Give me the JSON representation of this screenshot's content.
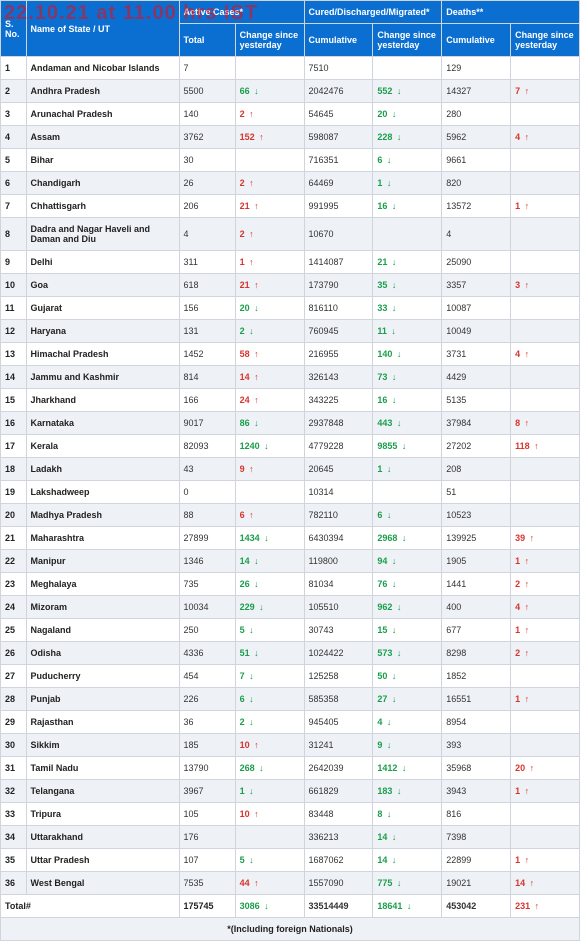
{
  "watermark": "22.10.21 at 11.00 hrs IST",
  "headers": {
    "sno": "S. No.",
    "state": "Name of State / UT",
    "active_group": "Active Cases*",
    "cured_group": "Cured/Discharged/Migrated*",
    "deaths_group": "Deaths**",
    "total": "Total",
    "change": "Change since yesterday",
    "cumulative": "Cumulative"
  },
  "footnote": "*(Including foreign Nationals)",
  "total_label": "Total#",
  "totals": {
    "active_total": "175745",
    "active_change": "3086",
    "active_dir": "down",
    "cured_cum": "33514449",
    "cured_change": "18641",
    "cured_dir": "down",
    "death_cum": "453042",
    "death_change": "231",
    "death_dir": "up"
  },
  "rows": [
    {
      "n": "1",
      "name": "Andaman and Nicobar Islands",
      "at": "7",
      "ac": "",
      "ad": "",
      "cc": "7510",
      "cch": "",
      "cd": "",
      "dc": "129",
      "dch": "",
      "dd": ""
    },
    {
      "n": "2",
      "name": "Andhra Pradesh",
      "at": "5500",
      "ac": "66",
      "ad": "down",
      "cc": "2042476",
      "cch": "552",
      "cd": "down",
      "dc": "14327",
      "dch": "7",
      "dd": "up"
    },
    {
      "n": "3",
      "name": "Arunachal Pradesh",
      "at": "140",
      "ac": "2",
      "ad": "up",
      "cc": "54645",
      "cch": "20",
      "cd": "down",
      "dc": "280",
      "dch": "",
      "dd": ""
    },
    {
      "n": "4",
      "name": "Assam",
      "at": "3762",
      "ac": "152",
      "ad": "up",
      "cc": "598087",
      "cch": "228",
      "cd": "down",
      "dc": "5962",
      "dch": "4",
      "dd": "up"
    },
    {
      "n": "5",
      "name": "Bihar",
      "at": "30",
      "ac": "",
      "ad": "",
      "cc": "716351",
      "cch": "6",
      "cd": "down",
      "dc": "9661",
      "dch": "",
      "dd": ""
    },
    {
      "n": "6",
      "name": "Chandigarh",
      "at": "26",
      "ac": "2",
      "ad": "up",
      "cc": "64469",
      "cch": "1",
      "cd": "down",
      "dc": "820",
      "dch": "",
      "dd": ""
    },
    {
      "n": "7",
      "name": "Chhattisgarh",
      "at": "206",
      "ac": "21",
      "ad": "up",
      "cc": "991995",
      "cch": "16",
      "cd": "down",
      "dc": "13572",
      "dch": "1",
      "dd": "up"
    },
    {
      "n": "8",
      "name": "Dadra and Nagar Haveli and Daman and Diu",
      "at": "4",
      "ac": "2",
      "ad": "up",
      "cc": "10670",
      "cch": "",
      "cd": "",
      "dc": "4",
      "dch": "",
      "dd": ""
    },
    {
      "n": "9",
      "name": "Delhi",
      "at": "311",
      "ac": "1",
      "ad": "up",
      "cc": "1414087",
      "cch": "21",
      "cd": "down",
      "dc": "25090",
      "dch": "",
      "dd": ""
    },
    {
      "n": "10",
      "name": "Goa",
      "at": "618",
      "ac": "21",
      "ad": "up",
      "cc": "173790",
      "cch": "35",
      "cd": "down",
      "dc": "3357",
      "dch": "3",
      "dd": "up"
    },
    {
      "n": "11",
      "name": "Gujarat",
      "at": "156",
      "ac": "20",
      "ad": "down",
      "cc": "816110",
      "cch": "33",
      "cd": "down",
      "dc": "10087",
      "dch": "",
      "dd": ""
    },
    {
      "n": "12",
      "name": "Haryana",
      "at": "131",
      "ac": "2",
      "ad": "down",
      "cc": "760945",
      "cch": "11",
      "cd": "down",
      "dc": "10049",
      "dch": "",
      "dd": ""
    },
    {
      "n": "13",
      "name": "Himachal Pradesh",
      "at": "1452",
      "ac": "58",
      "ad": "up",
      "cc": "216955",
      "cch": "140",
      "cd": "down",
      "dc": "3731",
      "dch": "4",
      "dd": "up"
    },
    {
      "n": "14",
      "name": "Jammu and Kashmir",
      "at": "814",
      "ac": "14",
      "ad": "up",
      "cc": "326143",
      "cch": "73",
      "cd": "down",
      "dc": "4429",
      "dch": "",
      "dd": ""
    },
    {
      "n": "15",
      "name": "Jharkhand",
      "at": "166",
      "ac": "24",
      "ad": "up",
      "cc": "343225",
      "cch": "16",
      "cd": "down",
      "dc": "5135",
      "dch": "",
      "dd": ""
    },
    {
      "n": "16",
      "name": "Karnataka",
      "at": "9017",
      "ac": "86",
      "ad": "down",
      "cc": "2937848",
      "cch": "443",
      "cd": "down",
      "dc": "37984",
      "dch": "8",
      "dd": "up"
    },
    {
      "n": "17",
      "name": "Kerala",
      "at": "82093",
      "ac": "1240",
      "ad": "down",
      "cc": "4779228",
      "cch": "9855",
      "cd": "down",
      "dc": "27202",
      "dch": "118",
      "dd": "up"
    },
    {
      "n": "18",
      "name": "Ladakh",
      "at": "43",
      "ac": "9",
      "ad": "up",
      "cc": "20645",
      "cch": "1",
      "cd": "down",
      "dc": "208",
      "dch": "",
      "dd": ""
    },
    {
      "n": "19",
      "name": "Lakshadweep",
      "at": "0",
      "ac": "",
      "ad": "",
      "cc": "10314",
      "cch": "",
      "cd": "",
      "dc": "51",
      "dch": "",
      "dd": ""
    },
    {
      "n": "20",
      "name": "Madhya Pradesh",
      "at": "88",
      "ac": "6",
      "ad": "up",
      "cc": "782110",
      "cch": "6",
      "cd": "down",
      "dc": "10523",
      "dch": "",
      "dd": ""
    },
    {
      "n": "21",
      "name": "Maharashtra",
      "at": "27899",
      "ac": "1434",
      "ad": "down",
      "cc": "6430394",
      "cch": "2968",
      "cd": "down",
      "dc": "139925",
      "dch": "39",
      "dd": "up"
    },
    {
      "n": "22",
      "name": "Manipur",
      "at": "1346",
      "ac": "14",
      "ad": "down",
      "cc": "119800",
      "cch": "94",
      "cd": "down",
      "dc": "1905",
      "dch": "1",
      "dd": "up"
    },
    {
      "n": "23",
      "name": "Meghalaya",
      "at": "735",
      "ac": "26",
      "ad": "down",
      "cc": "81034",
      "cch": "76",
      "cd": "down",
      "dc": "1441",
      "dch": "2",
      "dd": "up"
    },
    {
      "n": "24",
      "name": "Mizoram",
      "at": "10034",
      "ac": "229",
      "ad": "down",
      "cc": "105510",
      "cch": "962",
      "cd": "down",
      "dc": "400",
      "dch": "4",
      "dd": "up"
    },
    {
      "n": "25",
      "name": "Nagaland",
      "at": "250",
      "ac": "5",
      "ad": "down",
      "cc": "30743",
      "cch": "15",
      "cd": "down",
      "dc": "677",
      "dch": "1",
      "dd": "up"
    },
    {
      "n": "26",
      "name": "Odisha",
      "at": "4336",
      "ac": "51",
      "ad": "down",
      "cc": "1024422",
      "cch": "573",
      "cd": "down",
      "dc": "8298",
      "dch": "2",
      "dd": "up"
    },
    {
      "n": "27",
      "name": "Puducherry",
      "at": "454",
      "ac": "7",
      "ad": "down",
      "cc": "125258",
      "cch": "50",
      "cd": "down",
      "dc": "1852",
      "dch": "",
      "dd": ""
    },
    {
      "n": "28",
      "name": "Punjab",
      "at": "226",
      "ac": "6",
      "ad": "down",
      "cc": "585358",
      "cch": "27",
      "cd": "down",
      "dc": "16551",
      "dch": "1",
      "dd": "up"
    },
    {
      "n": "29",
      "name": "Rajasthan",
      "at": "36",
      "ac": "2",
      "ad": "down",
      "cc": "945405",
      "cch": "4",
      "cd": "down",
      "dc": "8954",
      "dch": "",
      "dd": ""
    },
    {
      "n": "30",
      "name": "Sikkim",
      "at": "185",
      "ac": "10",
      "ad": "up",
      "cc": "31241",
      "cch": "9",
      "cd": "down",
      "dc": "393",
      "dch": "",
      "dd": ""
    },
    {
      "n": "31",
      "name": "Tamil Nadu",
      "at": "13790",
      "ac": "268",
      "ad": "down",
      "cc": "2642039",
      "cch": "1412",
      "cd": "down",
      "dc": "35968",
      "dch": "20",
      "dd": "up"
    },
    {
      "n": "32",
      "name": "Telangana",
      "at": "3967",
      "ac": "1",
      "ad": "down",
      "cc": "661829",
      "cch": "183",
      "cd": "down",
      "dc": "3943",
      "dch": "1",
      "dd": "up"
    },
    {
      "n": "33",
      "name": "Tripura",
      "at": "105",
      "ac": "10",
      "ad": "up",
      "cc": "83448",
      "cch": "8",
      "cd": "down",
      "dc": "816",
      "dch": "",
      "dd": ""
    },
    {
      "n": "34",
      "name": "Uttarakhand",
      "at": "176",
      "ac": "",
      "ad": "",
      "cc": "336213",
      "cch": "14",
      "cd": "down",
      "dc": "7398",
      "dch": "",
      "dd": ""
    },
    {
      "n": "35",
      "name": "Uttar Pradesh",
      "at": "107",
      "ac": "5",
      "ad": "down",
      "cc": "1687062",
      "cch": "14",
      "cd": "down",
      "dc": "22899",
      "dch": "1",
      "dd": "up"
    },
    {
      "n": "36",
      "name": "West Bengal",
      "at": "7535",
      "ac": "44",
      "ad": "up",
      "cc": "1557090",
      "cch": "775",
      "cd": "down",
      "dc": "19021",
      "dch": "14",
      "dd": "up"
    }
  ]
}
